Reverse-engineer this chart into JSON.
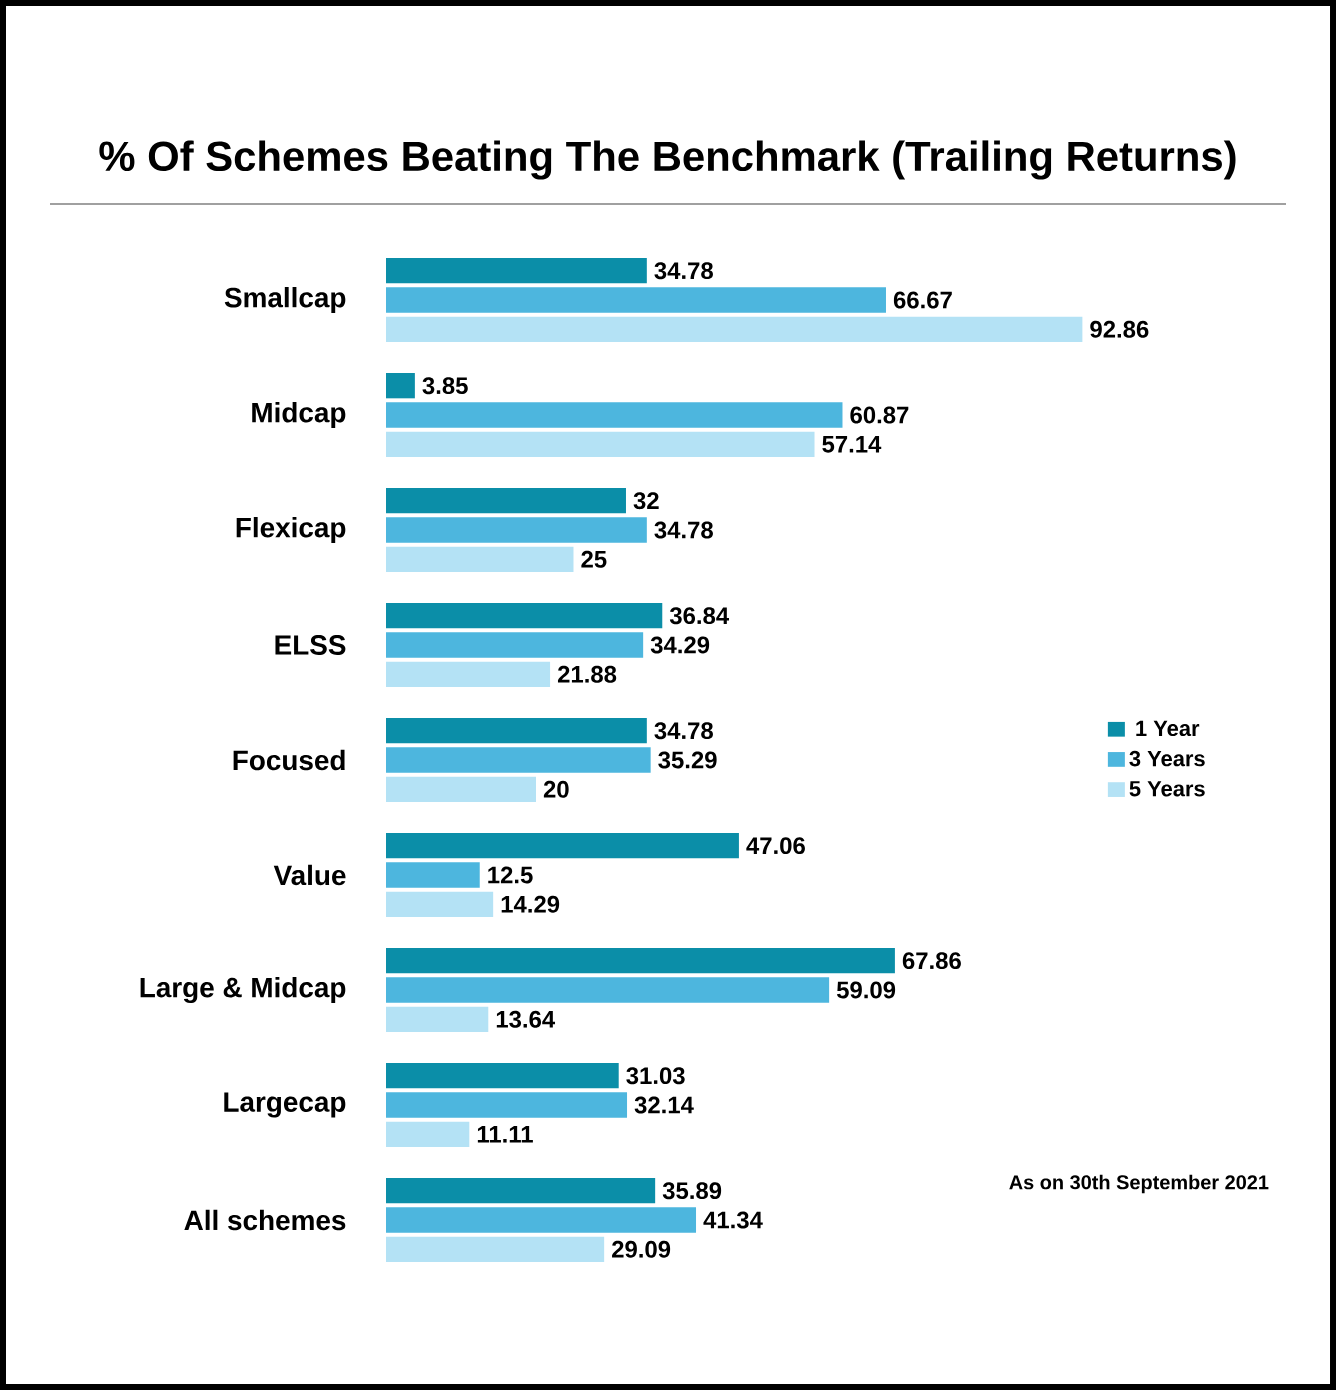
{
  "chart_data": {
    "type": "bar",
    "orientation": "horizontal",
    "title": "% Of Schemes Beating The Benchmark (Trailing Returns)",
    "categories": [
      "Smallcap",
      "Midcap",
      "Flexicap",
      "ELSS",
      "Focused",
      "Value",
      "Large & Midcap",
      "Largecap",
      "All schemes"
    ],
    "series": [
      {
        "name": "1 Year",
        "color": "#0b8ea8",
        "values": [
          34.78,
          3.85,
          32,
          36.84,
          34.78,
          47.06,
          67.86,
          31.03,
          35.89
        ]
      },
      {
        "name": "3 Years",
        "color": "#4db6de",
        "values": [
          66.67,
          60.87,
          34.78,
          34.29,
          35.29,
          12.5,
          59.09,
          32.14,
          41.34
        ]
      },
      {
        "name": "5 Years",
        "color": "#b4e2f5",
        "values": [
          92.86,
          57.14,
          25,
          21.88,
          20,
          14.29,
          13.64,
          11.11,
          29.09
        ]
      }
    ],
    "data_labels": true,
    "legend": "right",
    "annotations": [
      "As on 30th September 2021"
    ]
  }
}
